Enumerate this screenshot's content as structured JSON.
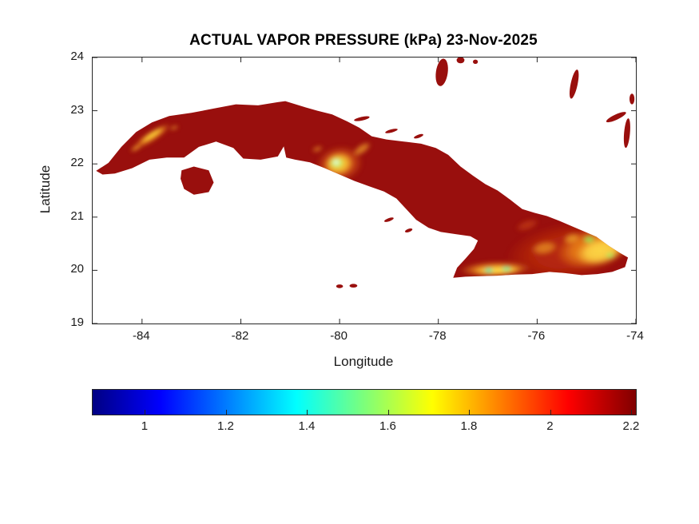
{
  "chart_data": {
    "type": "heatmap",
    "title": "ACTUAL VAPOR PRESSURE (kPa) 23-Nov-2025",
    "xlabel": "Longitude",
    "ylabel": "Latitude",
    "xlim": [
      -85,
      -74
    ],
    "ylim": [
      19,
      24
    ],
    "xticks": [
      "-84",
      "-82",
      "-80",
      "-78",
      "-76",
      "-74"
    ],
    "yticks": [
      "24",
      "23",
      "22",
      "21",
      "20",
      "19"
    ],
    "grid": false,
    "units": "kPa",
    "colorbar": {
      "orientation": "horizontal",
      "colormap": "jet",
      "min": 0.87,
      "max": 2.21,
      "tick_labels": [
        "1",
        "1.2",
        "1.4",
        "1.6",
        "1.8",
        "2",
        "2.2"
      ],
      "stops": [
        {
          "p": 0.0,
          "c": "#000083"
        },
        {
          "p": 0.125,
          "c": "#0000ff"
        },
        {
          "p": 0.375,
          "c": "#00ffff"
        },
        {
          "p": 0.5,
          "c": "#7dff7a"
        },
        {
          "p": 0.625,
          "c": "#ffff00"
        },
        {
          "p": 0.875,
          "c": "#ff0000"
        },
        {
          "p": 1.0,
          "c": "#800000"
        }
      ]
    },
    "base_land_color": "#990f0d",
    "regions": [
      {
        "area": "Most of Cuba lowlands",
        "value_kpa": "2.1-2.2",
        "appearance": "dark red"
      },
      {
        "area": "Pinar del Rio highlands (~-84.2 to -83.4 lon, 22.2-22.7 lat)",
        "value_kpa": "1.7-2.0",
        "appearance": "yellow-orange streak"
      },
      {
        "area": "Escambray mountains (~-80.0 lon, 22.0 lat)",
        "value_kpa": "1.2-1.9",
        "appearance": "yellow ring, pale green center"
      },
      {
        "area": "Sierra Maestra south coast (~-77.5 to -76.3 lon, ~20.0 lat)",
        "value_kpa": "1.3-1.9",
        "appearance": "yellow band with green-cyan spots"
      },
      {
        "area": "Nipe-Sagua-Baracoa massif (~-75.5 to -74.2 lon, 20.1-20.8 lat)",
        "value_kpa": "1.4-2.0",
        "appearance": "large yellow-orange area with green spots"
      }
    ],
    "land": {
      "cuba_main": [
        [
          -84.93,
          21.87
        ],
        [
          -84.68,
          22.02
        ],
        [
          -84.42,
          22.32
        ],
        [
          -84.12,
          22.6
        ],
        [
          -83.8,
          22.78
        ],
        [
          -83.45,
          22.9
        ],
        [
          -83.0,
          22.96
        ],
        [
          -82.55,
          23.04
        ],
        [
          -82.1,
          23.12
        ],
        [
          -81.65,
          23.1
        ],
        [
          -81.25,
          23.16
        ],
        [
          -81.1,
          23.18
        ],
        [
          -80.75,
          23.08
        ],
        [
          -80.45,
          23.0
        ],
        [
          -80.15,
          22.93
        ],
        [
          -79.85,
          22.8
        ],
        [
          -79.6,
          22.68
        ],
        [
          -79.35,
          22.52
        ],
        [
          -79.05,
          22.46
        ],
        [
          -78.7,
          22.42
        ],
        [
          -78.35,
          22.38
        ],
        [
          -78.05,
          22.3
        ],
        [
          -77.8,
          22.17
        ],
        [
          -77.55,
          21.95
        ],
        [
          -77.3,
          21.78
        ],
        [
          -77.05,
          21.62
        ],
        [
          -76.8,
          21.5
        ],
        [
          -76.55,
          21.33
        ],
        [
          -76.3,
          21.15
        ],
        [
          -76.05,
          21.08
        ],
        [
          -75.8,
          21.02
        ],
        [
          -75.55,
          20.93
        ],
        [
          -75.3,
          20.83
        ],
        [
          -75.05,
          20.73
        ],
        [
          -74.8,
          20.63
        ],
        [
          -74.55,
          20.46
        ],
        [
          -74.33,
          20.33
        ],
        [
          -74.16,
          20.24
        ],
        [
          -74.22,
          20.06
        ],
        [
          -74.48,
          19.97
        ],
        [
          -74.78,
          19.93
        ],
        [
          -75.1,
          19.91
        ],
        [
          -75.45,
          19.95
        ],
        [
          -75.75,
          19.97
        ],
        [
          -76.1,
          19.93
        ],
        [
          -76.45,
          19.92
        ],
        [
          -76.8,
          19.9
        ],
        [
          -77.15,
          19.89
        ],
        [
          -77.45,
          19.88
        ],
        [
          -77.7,
          19.86
        ],
        [
          -77.62,
          20.05
        ],
        [
          -77.45,
          20.22
        ],
        [
          -77.28,
          20.4
        ],
        [
          -77.2,
          20.56
        ],
        [
          -77.35,
          20.64
        ],
        [
          -77.65,
          20.68
        ],
        [
          -77.95,
          20.72
        ],
        [
          -78.2,
          20.8
        ],
        [
          -78.45,
          20.95
        ],
        [
          -78.65,
          21.15
        ],
        [
          -78.85,
          21.35
        ],
        [
          -79.1,
          21.48
        ],
        [
          -79.4,
          21.58
        ],
        [
          -79.7,
          21.68
        ],
        [
          -80.0,
          21.8
        ],
        [
          -80.3,
          21.92
        ],
        [
          -80.6,
          22.03
        ],
        [
          -80.9,
          22.08
        ],
        [
          -81.08,
          22.12
        ],
        [
          -81.13,
          22.33
        ],
        [
          -81.25,
          22.14
        ],
        [
          -81.6,
          22.08
        ],
        [
          -81.95,
          22.1
        ],
        [
          -82.15,
          22.3
        ],
        [
          -82.5,
          22.42
        ],
        [
          -82.85,
          22.32
        ],
        [
          -83.15,
          22.12
        ],
        [
          -83.5,
          22.12
        ],
        [
          -83.85,
          22.08
        ],
        [
          -84.2,
          21.92
        ],
        [
          -84.55,
          21.82
        ],
        [
          -84.8,
          21.8
        ]
      ],
      "isla_juventud": [
        [
          -83.2,
          21.88
        ],
        [
          -82.95,
          21.95
        ],
        [
          -82.65,
          21.88
        ],
        [
          -82.55,
          21.65
        ],
        [
          -82.65,
          21.47
        ],
        [
          -82.95,
          21.42
        ],
        [
          -83.15,
          21.53
        ],
        [
          -83.22,
          21.72
        ]
      ]
    },
    "islet_format": "[cx_lon, cy_lat, rx_deg, ry_deg, rot_deg]",
    "islets": [
      [
        -77.93,
        23.72,
        0.12,
        0.26,
        8
      ],
      [
        -77.55,
        23.95,
        0.08,
        0.06,
        0
      ],
      [
        -77.25,
        23.92,
        0.05,
        0.04,
        0
      ],
      [
        -75.25,
        23.5,
        0.07,
        0.28,
        12
      ],
      [
        -74.4,
        22.88,
        0.22,
        0.05,
        -25
      ],
      [
        -74.18,
        22.58,
        0.06,
        0.28,
        5
      ],
      [
        -74.08,
        23.22,
        0.05,
        0.1,
        0
      ],
      [
        -80.0,
        19.7,
        0.07,
        0.035,
        0
      ],
      [
        -79.72,
        19.71,
        0.08,
        0.035,
        0
      ],
      [
        -79.55,
        22.85,
        0.16,
        0.035,
        -12
      ],
      [
        -78.95,
        22.62,
        0.13,
        0.03,
        -15
      ],
      [
        -78.4,
        22.52,
        0.1,
        0.03,
        -20
      ],
      [
        -79.0,
        20.95,
        0.1,
        0.03,
        -20
      ],
      [
        -78.6,
        20.75,
        0.08,
        0.03,
        -20
      ]
    ],
    "hotspot_format": "[cx_lon, cy_lat, rx_deg, ry_deg, rot_deg, color, opacity]",
    "hotspots": [
      [
        -83.8,
        22.52,
        0.45,
        0.1,
        -33,
        "#e8821c",
        0.95
      ],
      [
        -83.8,
        22.54,
        0.3,
        0.055,
        -33,
        "#ffd93b",
        0.95
      ],
      [
        -84.12,
        22.3,
        0.14,
        0.05,
        -30,
        "#f2a22a",
        0.8
      ],
      [
        -83.35,
        22.68,
        0.1,
        0.04,
        -20,
        "#f2a22a",
        0.7
      ],
      [
        -80.0,
        22.0,
        0.48,
        0.34,
        -10,
        "#e0661a",
        0.8
      ],
      [
        -80.02,
        22.0,
        0.3,
        0.22,
        -10,
        "#fccf35",
        0.95
      ],
      [
        -80.06,
        22.02,
        0.16,
        0.12,
        0,
        "#c6f066",
        0.95
      ],
      [
        -80.07,
        22.03,
        0.08,
        0.06,
        0,
        "#eefff2",
        0.85
      ],
      [
        -79.55,
        22.28,
        0.22,
        0.09,
        -35,
        "#f0a22a",
        0.75
      ],
      [
        -80.45,
        22.28,
        0.12,
        0.06,
        -20,
        "#ef9a25",
        0.6
      ],
      [
        -75.4,
        20.35,
        1.25,
        0.55,
        -8,
        "#cf3c0e",
        0.55
      ],
      [
        -76.85,
        20.02,
        0.72,
        0.15,
        -2,
        "#ef941e",
        0.9
      ],
      [
        -76.8,
        20.0,
        0.5,
        0.09,
        -2,
        "#ffdf4a",
        0.95
      ],
      [
        -76.98,
        20.0,
        0.1,
        0.055,
        0,
        "#52e8b0",
        0.95
      ],
      [
        -76.62,
        20.03,
        0.11,
        0.055,
        0,
        "#6cf0a6",
        0.9
      ],
      [
        -75.85,
        20.42,
        0.28,
        0.13,
        -10,
        "#f0a226",
        0.7
      ],
      [
        -74.85,
        20.42,
        0.78,
        0.38,
        -12,
        "#ef8c1c",
        0.9
      ],
      [
        -74.72,
        20.36,
        0.5,
        0.26,
        -12,
        "#ffdf4a",
        0.9
      ],
      [
        -74.95,
        20.58,
        0.13,
        0.07,
        0,
        "#90e852",
        0.9
      ],
      [
        -74.52,
        20.28,
        0.1,
        0.06,
        0,
        "#a0f060",
        0.85
      ],
      [
        -75.3,
        20.6,
        0.18,
        0.1,
        -15,
        "#f2b02a",
        0.7
      ],
      [
        -76.2,
        20.85,
        0.25,
        0.1,
        -20,
        "#d9541a",
        0.5
      ]
    ],
    "axis_color": "#262626"
  }
}
